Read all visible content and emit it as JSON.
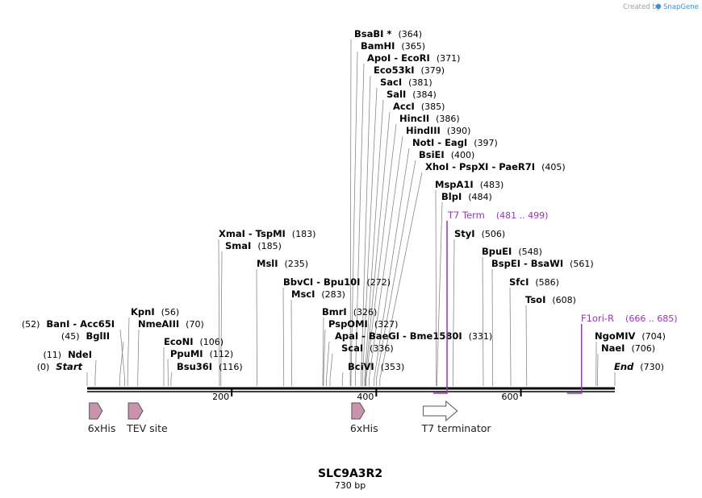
{
  "credit": {
    "prefix": "Created by",
    "brand": "SnapGene"
  },
  "construct": {
    "name": "SLC9A3R2",
    "length_label": "730 bp",
    "length": 730
  },
  "axis": {
    "ticks": [
      200,
      400,
      600
    ]
  },
  "sites": [
    {
      "name": "BsaBI *",
      "pos": "(364)",
      "loc": 364
    },
    {
      "name": "BamHI",
      "pos": "(365)",
      "loc": 365
    },
    {
      "name": "ApoI  - EcoRI",
      "pos": "(371)",
      "loc": 371
    },
    {
      "name": "Eco53kI",
      "pos": "(379)",
      "loc": 379
    },
    {
      "name": "SacI",
      "pos": "(381)",
      "loc": 381
    },
    {
      "name": "SalI",
      "pos": "(384)",
      "loc": 384
    },
    {
      "name": "AccI",
      "pos": "(385)",
      "loc": 385
    },
    {
      "name": "HincII",
      "pos": "(386)",
      "loc": 386
    },
    {
      "name": "HindIII",
      "pos": "(390)",
      "loc": 390
    },
    {
      "name": "NotI  - EagI",
      "pos": "(397)",
      "loc": 397
    },
    {
      "name": "BsiEI",
      "pos": "(400)",
      "loc": 400
    },
    {
      "name": "XhoI  - PspXI  - PaeR7I",
      "pos": "(405)",
      "loc": 405
    },
    {
      "name": "MspA1I",
      "pos": "(483)",
      "loc": 483
    },
    {
      "name": "BlpI",
      "pos": "(484)",
      "loc": 484
    },
    {
      "name": "StyI",
      "pos": "(506)",
      "loc": 506
    },
    {
      "name": "BpuEI",
      "pos": "(548)",
      "loc": 548
    },
    {
      "name": "BspEI  - BsaWI",
      "pos": "(561)",
      "loc": 561
    },
    {
      "name": "SfcI",
      "pos": "(586)",
      "loc": 586
    },
    {
      "name": "TsoI",
      "pos": "(608)",
      "loc": 608
    },
    {
      "name": "NgoMIV",
      "pos": "(704)",
      "loc": 704
    },
    {
      "name": "NaeI",
      "pos": "(706)",
      "loc": 706
    },
    {
      "name": "End",
      "pos": "(730)",
      "loc": 730,
      "italic": true
    },
    {
      "name": "XmaI  - TspMI",
      "pos": "(183)",
      "loc": 183
    },
    {
      "name": "SmaI",
      "pos": "(185)",
      "loc": 185
    },
    {
      "name": "MslI",
      "pos": "(235)",
      "loc": 235
    },
    {
      "name": "BbvCI  - Bpu10I",
      "pos": "(272)",
      "loc": 272
    },
    {
      "name": "MscI",
      "pos": "(283)",
      "loc": 283
    },
    {
      "name": "BmrI",
      "pos": "(326)",
      "loc": 326
    },
    {
      "name": "PspOMI",
      "pos": "(327)",
      "loc": 327
    },
    {
      "name": "ApaI  - BaeGI  - Bme1580I",
      "pos": "(331)",
      "loc": 331
    },
    {
      "name": "ScaI",
      "pos": "(336)",
      "loc": 336
    },
    {
      "name": "BciVI",
      "pos": "(353)",
      "loc": 353
    },
    {
      "name": "KpnI",
      "pos": "(56)",
      "loc": 56
    },
    {
      "name": "NmeAIII",
      "pos": "(70)",
      "loc": 70
    },
    {
      "name": "EcoNI",
      "pos": "(106)",
      "loc": 106
    },
    {
      "name": "PpuMI",
      "pos": "(112)",
      "loc": 112
    },
    {
      "name": "Bsu36I",
      "pos": "(116)",
      "loc": 116
    },
    {
      "name": "BanI  - Acc65I",
      "pos": "(52)",
      "loc": 52,
      "left": true
    },
    {
      "name": "BglII",
      "pos": "(45)",
      "loc": 45,
      "left": true
    },
    {
      "name": "NdeI",
      "pos": "(11)",
      "loc": 11,
      "left": true
    },
    {
      "name": "Start",
      "pos": "(0)",
      "loc": 0,
      "left": true,
      "italic": true
    }
  ],
  "primer_features": [
    {
      "name": "T7 Term",
      "range": "(481 .. 499)",
      "start": 481,
      "end": 499,
      "strand": "reverse"
    },
    {
      "name": "F1ori-R",
      "range": "(666 .. 685)",
      "start": 666,
      "end": 685,
      "strand": "reverse"
    }
  ],
  "track_features": [
    {
      "name": "6xHis",
      "start": 3,
      "end": 21,
      "type": "tag"
    },
    {
      "name": "TEV site",
      "start": 57,
      "end": 77,
      "type": "site"
    },
    {
      "name": "6xHis",
      "start": 366,
      "end": 384,
      "type": "tag"
    },
    {
      "name": "T7 terminator",
      "start": 465,
      "end": 512,
      "type": "terminator"
    }
  ],
  "colors": {
    "tag": "#c993ad",
    "primer": "#9932cc",
    "backbone": "#000000",
    "leader": "#888888"
  }
}
